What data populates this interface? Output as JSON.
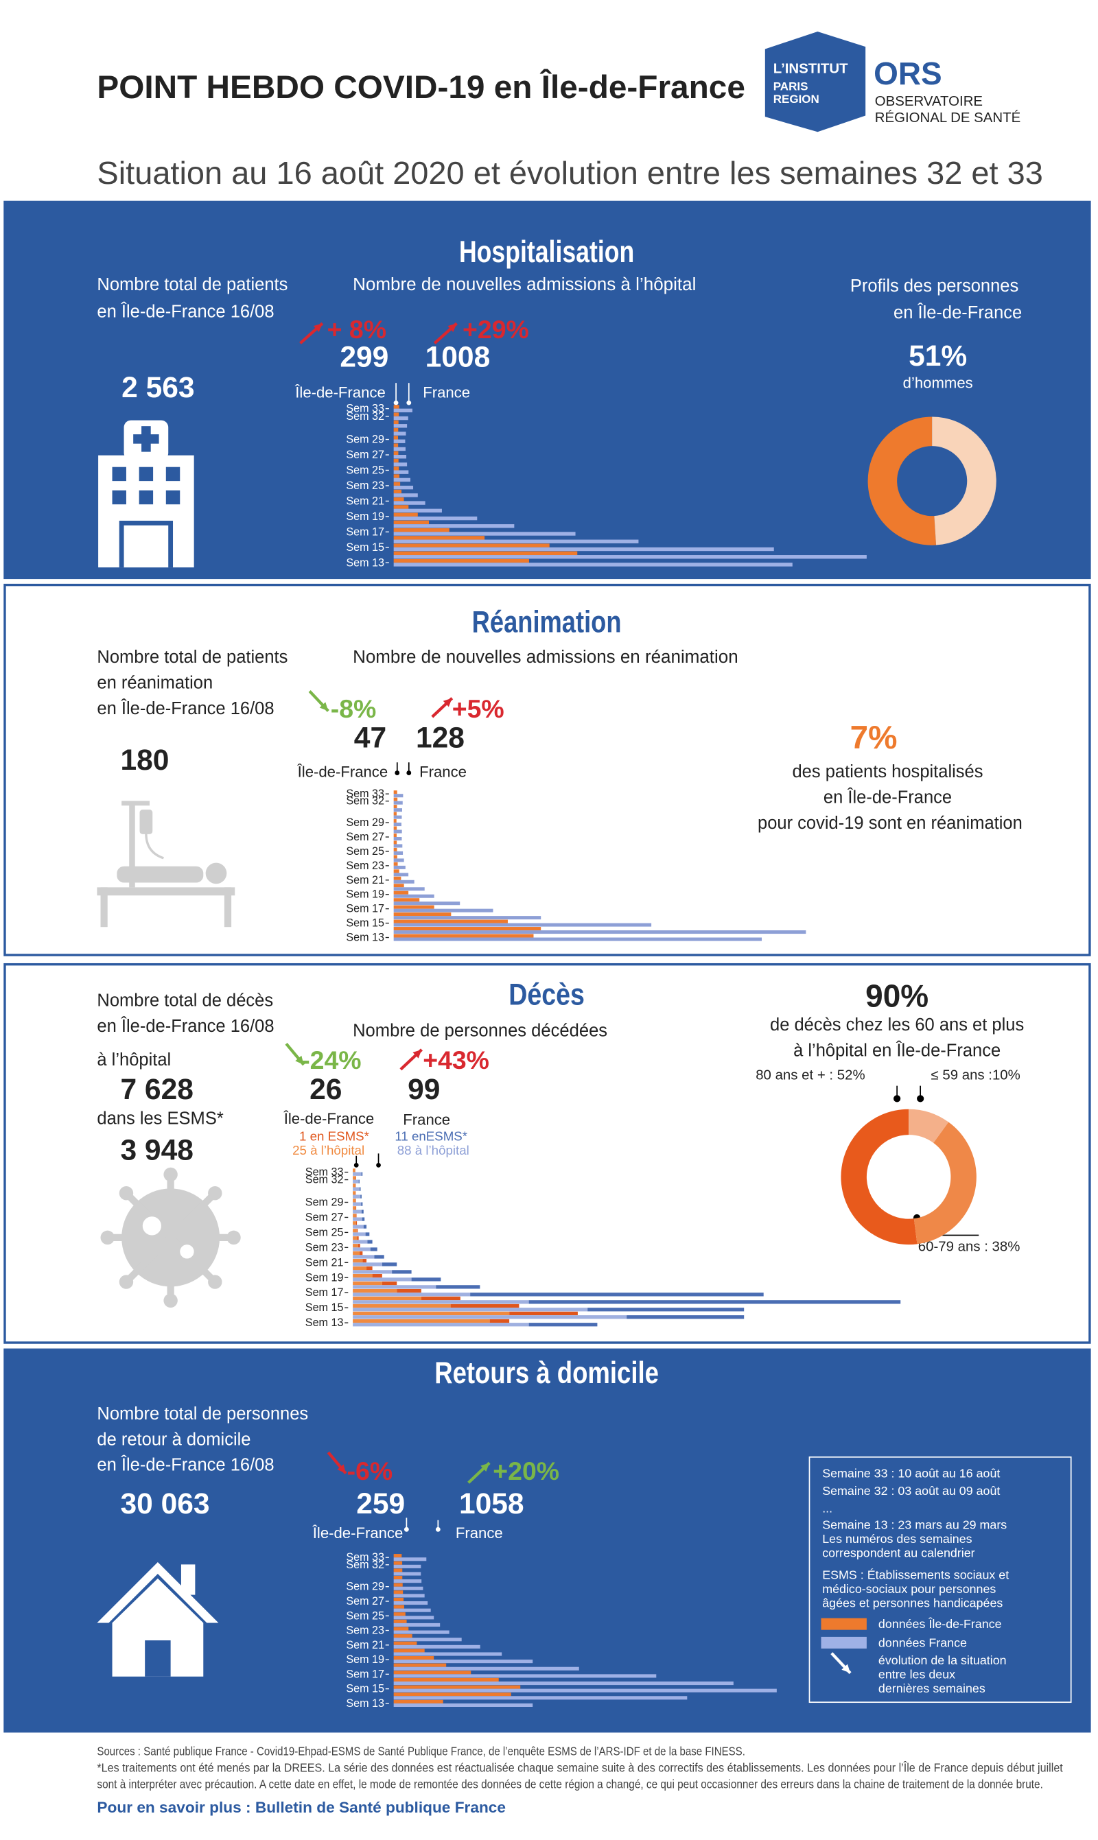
{
  "header": {
    "title": "POINT HEBDO COVID-19 en Île-de-France",
    "logo_institut": [
      "L’INSTITUT",
      "PARIS",
      "REGION"
    ],
    "logo_ors": "ORS",
    "logo_ors_name": [
      "OBSERVATOIRE",
      "RÉGIONAL DE SANTÉ"
    ],
    "subtitle": "Situation au 16 août 2020 et évolution entre les semaines 32 et 33"
  },
  "sections": [
    {
      "title": "Hospitalisation",
      "total_label": [
        "Nombre total de patients",
        "en Île-de-France 16/08"
      ],
      "total": "2 563",
      "chart_label": "Nombre de nouvelles admissions à l’hôpital",
      "evolution": [
        "+ 8%",
        "+29%"
      ],
      "profile_label": [
        "Profils des personnes",
        "en Île-de-France"
      ],
      "profile_caption": "d’hommes"
    },
    {
      "title": "Réanimation",
      "total_label": [
        "Nombre total de patients",
        "en réanimation",
        "en Île-de-France 16/08"
      ],
      "total": "180",
      "chart_label": "Nombre de nouvelles admissions en réanimation",
      "evolution": [
        "-8%",
        "+5%"
      ],
      "share": "7%",
      "share_caption": [
        "des patients hospitalisés",
        "en Île-de-France",
        "pour covid-19 sont en réanimation"
      ]
    },
    {
      "title": "Décès",
      "total_label": [
        "Nombre total de décès",
        "en Île-de-France 16/08"
      ],
      "hospital_label": "à l’hôpital",
      "hospital_total": "7 628",
      "esms_label": "dans les ESMS*",
      "esms_total": "3 948",
      "chart_label": "Nombre de personnes décédées",
      "evolution": [
        "-24%",
        "+43%"
      ],
      "week_totals": [
        26,
        99
      ],
      "share": "90%",
      "share_caption": [
        "de décès chez les 60 ans et plus",
        "à l’hôpital en Île-de-France"
      ]
    },
    {
      "title": "Retours à domicile",
      "total_label": [
        "Nombre total de personnes",
        "de retour à domicile",
        "en Île-de-France 16/08"
      ],
      "total": "30 063",
      "evolution": [
        "-6%",
        "+20%"
      ]
    }
  ],
  "legend": {
    "weeks": [
      "Semaine 33 : 10 août au 16 août",
      "Semaine 32 : 03 août au 09 août",
      "...",
      "Semaine 13 : 23 mars au 29 mars",
      "Les numéros des semaines",
      "correspondent au calendrier"
    ],
    "esms": [
      "ESMS : Établissements sociaux et",
      "médico-sociaux pour personnes",
      "âgées et personnes handicapées"
    ],
    "idf": "données Île-de-France",
    "france": "données France",
    "arrow": [
      "évolution de la situation",
      "entre les deux",
      "dernières semaines"
    ]
  },
  "footer": {
    "sources": [
      "Sources : Santé publique France - Covid19-Ehpad-ESMS de Santé Publique France, de l’enquête ESMS de l’ARS-IDF et de la base FINESS.",
      "*Les traitements ont été menés par la DREES. La série des données est réactualisée chaque semaine suite à des correctifs des établissements. Les données pour l’Île de France depuis début juillet",
      "sont à interpréter avec précaution. A cette date en effet, le mode de remontée des données de cette région a changé, ce qui peut occasionner des erreurs dans la chaine de traitement de la donnée brute."
    ],
    "more": "Pour en savoir plus : Bulletin de Santé publique France"
  },
  "chart_data": [
    {
      "type": "bar",
      "orientation": "horizontal",
      "categories": [
        "Sem 33",
        "Sem 32",
        null,
        null,
        "Sem 29",
        null,
        "Sem 27",
        null,
        "Sem 25",
        null,
        "Sem 23",
        null,
        "Sem 21",
        null,
        "Sem 19",
        null,
        "Sem 17",
        null,
        "Sem 15",
        null,
        "Sem 13"
      ],
      "series": [
        {
          "name": "Île-de-France",
          "color": "#ee7a2d",
          "values": [
            299,
            277,
            260,
            245,
            235,
            240,
            250,
            260,
            280,
            310,
            350,
            420,
            550,
            800,
            1300,
            1900,
            3000,
            4900,
            8400,
            9900,
            7300
          ]
        },
        {
          "name": "France",
          "color": "#9fb1e6",
          "values": [
            1008,
            781,
            720,
            660,
            620,
            640,
            680,
            720,
            800,
            900,
            1050,
            1300,
            1700,
            2600,
            4500,
            6500,
            9800,
            13200,
            20500,
            25500,
            21500
          ]
        }
      ]
    },
    {
      "type": "pie",
      "donut": true,
      "values": [
        51,
        49
      ],
      "value_labels": [
        "51%",
        null
      ],
      "colors": [
        "#ee7a2d",
        "#f9d4b9"
      ]
    },
    {
      "type": "bar",
      "orientation": "horizontal",
      "categories": [
        "Sem 33",
        "Sem 32",
        null,
        null,
        "Sem 29",
        null,
        "Sem 27",
        null,
        "Sem 25",
        null,
        "Sem 23",
        null,
        "Sem 21",
        null,
        "Sem 19",
        null,
        "Sem 17",
        null,
        "Sem 15",
        null,
        "Sem 13"
      ],
      "series": [
        {
          "name": "Île-de-France",
          "color": "#ee7a2d",
          "values": [
            47,
            51,
            45,
            40,
            38,
            42,
            40,
            42,
            45,
            48,
            55,
            75,
            100,
            140,
            200,
            350,
            550,
            780,
            1550,
            2000,
            1900
          ]
        },
        {
          "name": "France",
          "color": "#8d9fd6",
          "values": [
            128,
            122,
            115,
            110,
            105,
            112,
            110,
            118,
            125,
            140,
            160,
            200,
            280,
            420,
            550,
            900,
            1350,
            2000,
            3500,
            5600,
            5000
          ]
        }
      ]
    },
    {
      "type": "bar",
      "orientation": "horizontal",
      "stacked": true,
      "groups": [
        "Île-de-France",
        "France"
      ],
      "categories": [
        "Sem 33",
        "Sem 32",
        null,
        null,
        "Sem 29",
        null,
        "Sem 27",
        null,
        "Sem 25",
        null,
        "Sem 23",
        null,
        "Sem 21",
        null,
        "Sem 19",
        null,
        "Sem 17",
        null,
        "Sem 15",
        null,
        "Sem 13"
      ],
      "series": [
        {
          "name": "25 à l’hôpital",
          "color": "#f08a40",
          "values": [
            25,
            30,
            27,
            27,
            28,
            30,
            32,
            34,
            40,
            45,
            55,
            70,
            100,
            140,
            200,
            300,
            450,
            700,
            1000,
            1600,
            1400
          ]
        },
        {
          "name": "1 en ESMS*",
          "color": "#e0561c",
          "values": [
            1,
            4,
            3,
            3,
            4,
            5,
            6,
            8,
            10,
            15,
            20,
            30,
            40,
            60,
            100,
            150,
            250,
            400,
            700,
            700,
            200
          ]
        },
        {
          "name": "88 à l’hôpital",
          "color": "#9fb0e0",
          "values": [
            88,
            60,
            70,
            78,
            85,
            90,
            95,
            110,
            130,
            150,
            180,
            220,
            300,
            400,
            600,
            850,
            1200,
            1800,
            2400,
            2800,
            1800
          ]
        },
        {
          "name": "11 enESMS*",
          "color": "#4a6db3",
          "values": [
            11,
            9,
            10,
            12,
            15,
            20,
            25,
            30,
            40,
            50,
            70,
            100,
            150,
            200,
            300,
            450,
            3000,
            3800,
            1600,
            1200,
            700
          ]
        }
      ]
    },
    {
      "type": "pie",
      "donut": true,
      "values": [
        52,
        38,
        10
      ],
      "value_labels": [
        "80 ans et + : 52%",
        "60-79 ans : 38%",
        "≤ 59 ans :10%"
      ],
      "colors": [
        "#e85a1c",
        "#ef8848",
        "#f4b08a"
      ]
    },
    {
      "type": "bar",
      "orientation": "horizontal",
      "categories": [
        "Sem 33",
        "Sem 32",
        null,
        null,
        "Sem 29",
        null,
        "Sem 27",
        null,
        "Sem 25",
        null,
        "Sem 23",
        null,
        "Sem 21",
        null,
        "Sem 19",
        null,
        "Sem 17",
        null,
        "Sem 15",
        null,
        "Sem 13"
      ],
      "series": [
        {
          "name": "Île-de-France",
          "color": "#ee7a2d",
          "values": [
            259,
            276,
            280,
            280,
            290,
            300,
            320,
            340,
            380,
            420,
            480,
            600,
            750,
            1000,
            1300,
            1700,
            2500,
            3400,
            4100,
            3800,
            1600
          ]
        },
        {
          "name": "France",
          "color": "#9fb1e6",
          "values": [
            1058,
            882,
            880,
            900,
            950,
            1000,
            1100,
            1200,
            1300,
            1500,
            1800,
            2200,
            2800,
            3500,
            4500,
            6000,
            8500,
            11000,
            12400,
            9500,
            4500
          ]
        }
      ]
    }
  ]
}
